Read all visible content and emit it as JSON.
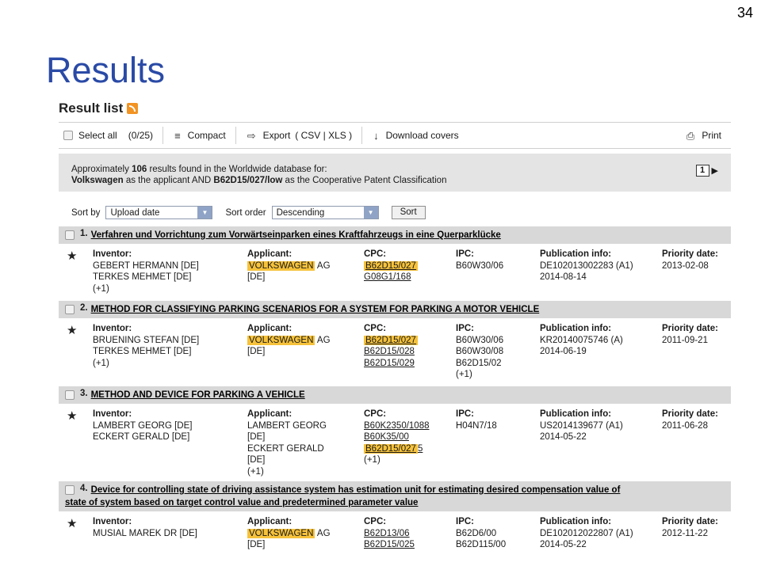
{
  "slide": {
    "number": "34",
    "title": "Results"
  },
  "result_list": {
    "heading": "Result list",
    "rss_icon": "rss-icon"
  },
  "toolbar": {
    "select_all": "Select all",
    "select_count": "(0/25)",
    "compact": "Compact",
    "export": "Export",
    "export_formats": "( CSV | XLS )",
    "download_covers": "Download covers",
    "print": "Print"
  },
  "summary": {
    "line1_pre": "Approximately ",
    "count": "106",
    "line1_post": " results found in the Worldwide database for:",
    "term1": "Volkswagen",
    "mid": " as the applicant AND ",
    "term2": "B62D15/027/low",
    "end": " as the Cooperative Patent Classification",
    "page": "1"
  },
  "sort": {
    "by_label": "Sort by",
    "by_value": "Upload date",
    "order_label": "Sort order",
    "order_value": "Descending",
    "button": "Sort"
  },
  "col_headers": {
    "inventor": "Inventor:",
    "applicant": "Applicant:",
    "cpc": "CPC:",
    "ipc": "IPC:",
    "pubinfo": "Publication info:",
    "priority": "Priority date:"
  },
  "highlight_color": "#f6c23b",
  "results": [
    {
      "num": "1.",
      "title": "Verfahren und Vorrichtung zum Vorwärtseinparken eines Kraftfahrzeugs in eine Querparklücke",
      "inventors": [
        "GEBERT HERMANN  [DE]",
        "TERKES MEHMET  [DE]",
        "(+1)"
      ],
      "applicant_hl": "VOLKSWAGEN",
      "applicant_rest": " AG",
      "applicant_more": [
        "[DE]"
      ],
      "cpc_hl": "B62D15/027",
      "cpc_more": [
        "G08G1/168"
      ],
      "ipc": [
        "B60W30/06"
      ],
      "pub": [
        "DE102013002283 (A1)",
        "2014-08-14"
      ],
      "priority": "2013-02-08"
    },
    {
      "num": "2.",
      "title": "METHOD FOR CLASSIFYING PARKING SCENARIOS FOR A SYSTEM FOR PARKING A MOTOR VEHICLE",
      "inventors": [
        "BRUENING STEFAN  [DE]",
        "TERKES MEHMET  [DE]",
        "(+1)"
      ],
      "applicant_hl": "VOLKSWAGEN",
      "applicant_rest": " AG",
      "applicant_more": [
        "[DE]"
      ],
      "cpc_hl": "B62D15/027",
      "cpc_more": [
        "B62D15/028",
        "B62D15/029"
      ],
      "ipc": [
        "B60W30/06",
        "B60W30/08",
        "B62D15/02",
        "(+1)"
      ],
      "pub": [
        "KR20140075746 (A)",
        "2014-06-19"
      ],
      "priority": "2011-09-21"
    },
    {
      "num": "3.",
      "title": "METHOD AND DEVICE FOR PARKING A VEHICLE",
      "inventors": [
        "LAMBERT GEORG  [DE]",
        "ECKERT GERALD  [DE]"
      ],
      "applicant_lines": [
        "LAMBERT GEORG",
        "[DE]",
        "ECKERT GERALD",
        "[DE]",
        "(+1)"
      ],
      "cpc_first": [
        "B60K2350/1088",
        "B60K35/00"
      ],
      "cpc_hl": "B62D15/027",
      "cpc_suffix": "5",
      "cpc_after": "(+1)",
      "ipc": [
        "H04N7/18"
      ],
      "pub": [
        "US2014139677 (A1)",
        "2014-05-22"
      ],
      "priority": "2011-06-28"
    },
    {
      "num": "4.",
      "title_line1": "Device for controlling state of driving assistance system has estimation unit for estimating desired compensation value of",
      "title_line2": "state of system based on target control value and predetermined parameter value",
      "inventors": [
        "MUSIAL MAREK DR  [DE]"
      ],
      "applicant_hl": "VOLKSWAGEN",
      "applicant_rest": " AG",
      "applicant_more": [
        "[DE]"
      ],
      "cpc": [
        "B62D13/06",
        "B62D15/025"
      ],
      "ipc": [
        "B62D6/00",
        "B62D115/00"
      ],
      "pub": [
        "DE102012022807 (A1)",
        "2014-05-22"
      ],
      "priority": "2012-11-22"
    }
  ]
}
